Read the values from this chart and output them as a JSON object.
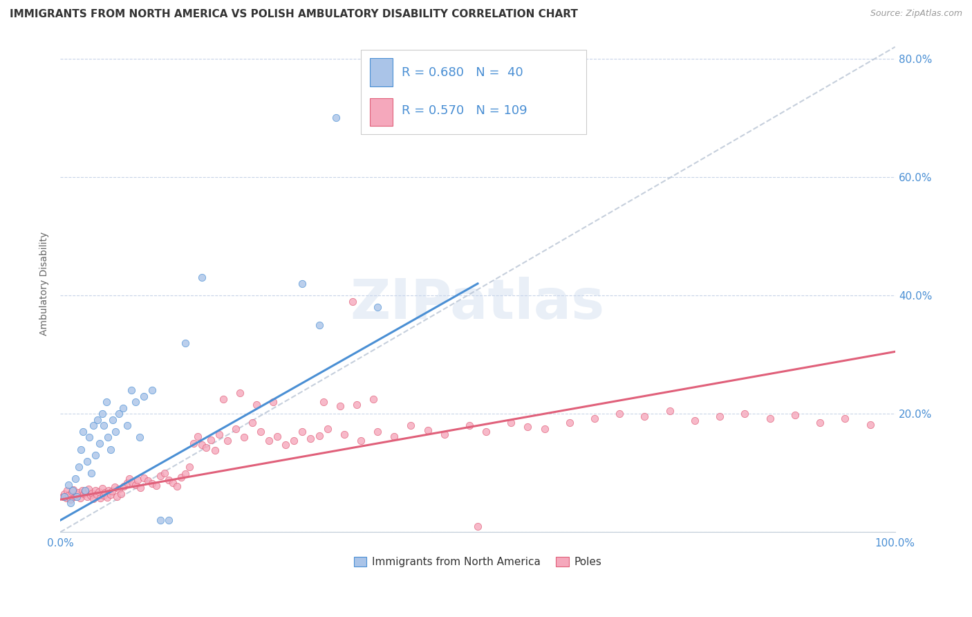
{
  "title": "IMMIGRANTS FROM NORTH AMERICA VS POLISH AMBULATORY DISABILITY CORRELATION CHART",
  "source": "Source: ZipAtlas.com",
  "ylabel": "Ambulatory Disability",
  "legend_label1": "Immigrants from North America",
  "legend_label2": "Poles",
  "R1": 0.68,
  "N1": 40,
  "R2": 0.57,
  "N2": 109,
  "color1": "#aac4e8",
  "color2": "#f5a8bc",
  "line_color1": "#4a8fd4",
  "line_color2": "#e0607a",
  "background_color": "#ffffff",
  "grid_color": "#c8d4e8",
  "title_fontsize": 11,
  "source_fontsize": 9,
  "axis_label_color": "#4a8fd4",
  "watermark": "ZIPatlas",
  "blue_line_x0": 0.0,
  "blue_line_y0": 0.02,
  "blue_line_x1": 0.5,
  "blue_line_y1": 0.42,
  "pink_line_x0": 0.0,
  "pink_line_y0": 0.055,
  "pink_line_x1": 1.0,
  "pink_line_y1": 0.305,
  "dash_line_x0": 0.0,
  "dash_line_y0": 0.0,
  "dash_line_x1": 1.0,
  "dash_line_y1": 0.82,
  "xlim": [
    0.0,
    1.0
  ],
  "ylim": [
    0.0,
    0.84
  ],
  "ytick_vals": [
    0.0,
    0.2,
    0.4,
    0.6,
    0.8
  ],
  "ytick_labels": [
    "",
    "20.0%",
    "40.0%",
    "60.0%",
    "80.0%"
  ],
  "blue_scatter_x": [
    0.005,
    0.01,
    0.012,
    0.015,
    0.018,
    0.02,
    0.022,
    0.025,
    0.027,
    0.03,
    0.032,
    0.035,
    0.037,
    0.04,
    0.042,
    0.045,
    0.047,
    0.05,
    0.052,
    0.055,
    0.057,
    0.06,
    0.063,
    0.066,
    0.07,
    0.075,
    0.08,
    0.085,
    0.09,
    0.095,
    0.1,
    0.11,
    0.12,
    0.13,
    0.15,
    0.17,
    0.29,
    0.31,
    0.33,
    0.38
  ],
  "blue_scatter_y": [
    0.06,
    0.08,
    0.05,
    0.07,
    0.09,
    0.06,
    0.11,
    0.14,
    0.17,
    0.07,
    0.12,
    0.16,
    0.1,
    0.18,
    0.13,
    0.19,
    0.15,
    0.2,
    0.18,
    0.22,
    0.16,
    0.14,
    0.19,
    0.17,
    0.2,
    0.21,
    0.18,
    0.24,
    0.22,
    0.16,
    0.23,
    0.24,
    0.02,
    0.02,
    0.32,
    0.43,
    0.42,
    0.35,
    0.7,
    0.38
  ],
  "pink_scatter_x": [
    0.003,
    0.005,
    0.007,
    0.008,
    0.01,
    0.012,
    0.014,
    0.016,
    0.018,
    0.02,
    0.022,
    0.024,
    0.026,
    0.028,
    0.03,
    0.032,
    0.034,
    0.036,
    0.038,
    0.04,
    0.042,
    0.044,
    0.046,
    0.048,
    0.05,
    0.052,
    0.054,
    0.056,
    0.058,
    0.06,
    0.062,
    0.065,
    0.068,
    0.07,
    0.073,
    0.076,
    0.08,
    0.083,
    0.086,
    0.09,
    0.093,
    0.096,
    0.1,
    0.105,
    0.11,
    0.115,
    0.12,
    0.125,
    0.13,
    0.135,
    0.14,
    0.145,
    0.15,
    0.16,
    0.165,
    0.17,
    0.175,
    0.18,
    0.185,
    0.19,
    0.2,
    0.21,
    0.22,
    0.23,
    0.24,
    0.25,
    0.26,
    0.27,
    0.28,
    0.29,
    0.3,
    0.31,
    0.32,
    0.34,
    0.36,
    0.38,
    0.4,
    0.42,
    0.44,
    0.46,
    0.49,
    0.51,
    0.54,
    0.56,
    0.58,
    0.61,
    0.64,
    0.67,
    0.7,
    0.73,
    0.76,
    0.79,
    0.82,
    0.85,
    0.88,
    0.91,
    0.94,
    0.97,
    0.5,
    0.35,
    0.155,
    0.195,
    0.215,
    0.235,
    0.255,
    0.315,
    0.335,
    0.355,
    0.375
  ],
  "pink_scatter_y": [
    0.06,
    0.065,
    0.058,
    0.07,
    0.062,
    0.055,
    0.068,
    0.072,
    0.06,
    0.063,
    0.067,
    0.058,
    0.071,
    0.065,
    0.069,
    0.06,
    0.073,
    0.062,
    0.066,
    0.057,
    0.07,
    0.063,
    0.068,
    0.058,
    0.074,
    0.062,
    0.067,
    0.059,
    0.071,
    0.064,
    0.069,
    0.076,
    0.06,
    0.073,
    0.065,
    0.078,
    0.083,
    0.09,
    0.085,
    0.08,
    0.088,
    0.075,
    0.092,
    0.087,
    0.082,
    0.079,
    0.095,
    0.1,
    0.088,
    0.083,
    0.078,
    0.093,
    0.098,
    0.15,
    0.162,
    0.148,
    0.143,
    0.156,
    0.138,
    0.165,
    0.155,
    0.175,
    0.16,
    0.185,
    0.17,
    0.155,
    0.162,
    0.148,
    0.155,
    0.17,
    0.158,
    0.163,
    0.175,
    0.165,
    0.155,
    0.17,
    0.162,
    0.18,
    0.172,
    0.165,
    0.18,
    0.17,
    0.185,
    0.178,
    0.175,
    0.185,
    0.192,
    0.2,
    0.195,
    0.205,
    0.188,
    0.195,
    0.2,
    0.192,
    0.198,
    0.185,
    0.192,
    0.182,
    0.01,
    0.39,
    0.11,
    0.225,
    0.235,
    0.215,
    0.22,
    0.22,
    0.213,
    0.215,
    0.225
  ]
}
